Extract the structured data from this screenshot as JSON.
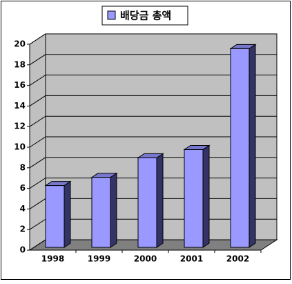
{
  "chart_data": {
    "type": "bar3d",
    "categories": [
      "1998",
      "1999",
      "2000",
      "2001",
      "2002"
    ],
    "series": [
      {
        "name": "배당금 총액",
        "color": "#9999ff",
        "values": [
          6,
          6.8,
          8.7,
          9.5,
          19.3
        ]
      }
    ],
    "ylim": [
      0,
      20
    ],
    "yticks": [
      0,
      2,
      4,
      6,
      8,
      10,
      12,
      14,
      16,
      18,
      20
    ],
    "grid": true,
    "legend": "top"
  }
}
